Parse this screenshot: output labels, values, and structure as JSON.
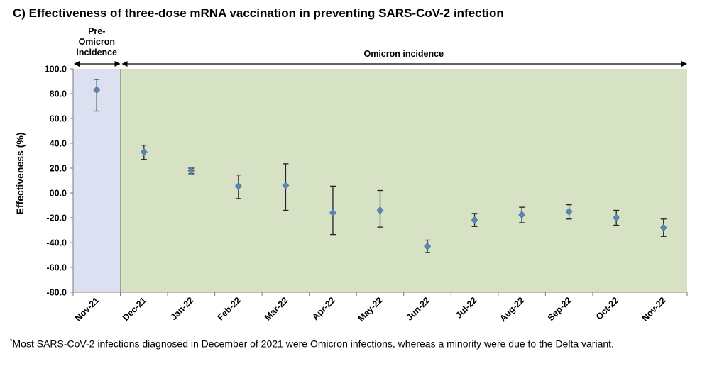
{
  "title": "C) Effectiveness of three-dose mRNA vaccination in preventing SARS-CoV-2 infection",
  "footnote": {
    "marker": "*",
    "text": "Most SARS-CoV-2 infections diagnosed in December of 2021 were Omicron infections, whereas a minority were due to the Delta variant."
  },
  "colors": {
    "pre_omicron_bg": "#dde0f1",
    "omicron_bg": "#d7e2c5",
    "marker": "#5b86b5",
    "error_bar": "#222222"
  },
  "chart_data": {
    "type": "scatter",
    "title": "C) Effectiveness of three-dose mRNA vaccination in preventing SARS-CoV-2 infection",
    "xlabel": "",
    "ylabel": "Effectiveness (%)",
    "ylim": [
      -80,
      100
    ],
    "yticks": [
      "100.0",
      "80.0",
      "60.0",
      "40.0",
      "20.0",
      "00.0",
      "-20.0",
      "-40.0",
      "-60.0",
      "-80.0"
    ],
    "ytick_values": [
      100,
      80,
      60,
      40,
      20,
      0,
      -20,
      -40,
      -60,
      -80
    ],
    "grid": false,
    "categories": [
      "Nov-21",
      "Dec-21",
      "Jan-22",
      "Feb-22",
      "Mar-22",
      "Apr-22",
      "May-22",
      "Jun-22",
      "Jul-22",
      "Aug-22",
      "Sep-22",
      "Oct-22",
      "Nov-22"
    ],
    "values": [
      83,
      33,
      18,
      5.5,
      6,
      -16,
      -14,
      -43,
      -22,
      -17.5,
      -15,
      -20,
      -28
    ],
    "lower": [
      66,
      27,
      15.5,
      -4.5,
      -14,
      -33.5,
      -27.5,
      -48,
      -27,
      -24,
      -21,
      -26,
      -35
    ],
    "upper": [
      91.5,
      38.5,
      20,
      14.5,
      23.5,
      5.5,
      2,
      -38,
      -16.5,
      -11.5,
      -9.5,
      -14,
      -21
    ],
    "bands": [
      {
        "label": "Pre-\nOmicron\nincidence",
        "lines": [
          "Pre-",
          "Omicron",
          "incidence"
        ],
        "from": "Nov-21",
        "to": "Nov-21"
      },
      {
        "label": "Omicron incidence",
        "lines": [
          "Omicron incidence"
        ],
        "from": "Dec-21",
        "to": "Nov-22"
      }
    ]
  }
}
